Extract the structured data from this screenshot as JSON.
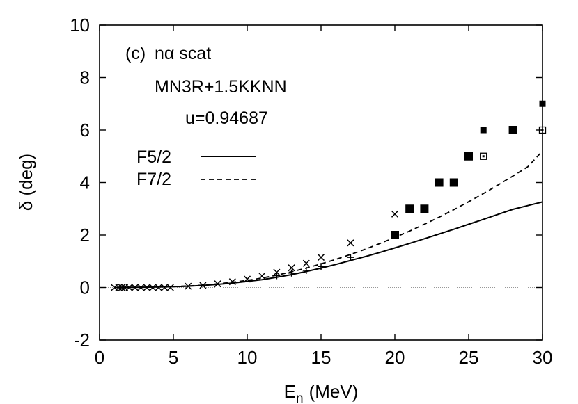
{
  "chart_data": {
    "type": "line",
    "panel_label": "(c)",
    "title": "nα scat",
    "annotations": [
      "MN3R+1.5KKNN",
      "u=0.94687"
    ],
    "xlabel_main": "E",
    "xlabel_sub": "n",
    "xlabel_unit": "(MeV)",
    "ylabel": "δ (deg)",
    "xlim": [
      0,
      30
    ],
    "ylim": [
      -2,
      10
    ],
    "xticks": [
      0,
      5,
      10,
      15,
      20,
      25,
      30
    ],
    "yticks": [
      -2,
      0,
      2,
      4,
      6,
      8,
      10
    ],
    "xtick_labels": [
      "0",
      "5",
      "10",
      "15",
      "20",
      "25",
      "30"
    ],
    "ytick_labels": [
      "-2",
      "0",
      "2",
      "4",
      "6",
      "8",
      "10"
    ],
    "zero_line": true,
    "legend_position": "left-middle",
    "series": [
      {
        "name": "F5/2",
        "style": "solid",
        "x": [
          1,
          2,
          3,
          4,
          5,
          6,
          7,
          8,
          9,
          10,
          11,
          12,
          13,
          14,
          15,
          16,
          17,
          18,
          19,
          20,
          21,
          22,
          23,
          24,
          25,
          26,
          27,
          28,
          29,
          30
        ],
        "y": [
          0.0,
          0.005,
          0.01,
          0.02,
          0.03,
          0.05,
          0.08,
          0.12,
          0.17,
          0.23,
          0.3,
          0.39,
          0.49,
          0.61,
          0.74,
          0.88,
          1.03,
          1.18,
          1.34,
          1.51,
          1.68,
          1.86,
          2.04,
          2.22,
          2.41,
          2.6,
          2.79,
          2.98,
          3.12,
          3.26
        ]
      },
      {
        "name": "F7/2",
        "style": "dashed",
        "x": [
          1,
          2,
          3,
          4,
          5,
          6,
          7,
          8,
          9,
          10,
          11,
          12,
          13,
          14,
          15,
          16,
          17,
          18,
          19,
          20,
          21,
          22,
          23,
          24,
          25,
          26,
          27,
          28,
          29,
          30
        ],
        "y": [
          0.0,
          0.005,
          0.01,
          0.02,
          0.035,
          0.06,
          0.09,
          0.14,
          0.2,
          0.27,
          0.36,
          0.47,
          0.6,
          0.74,
          0.9,
          1.07,
          1.26,
          1.46,
          1.68,
          1.91,
          2.15,
          2.41,
          2.68,
          2.97,
          3.27,
          3.58,
          3.91,
          4.25,
          4.6,
          5.2
        ]
      }
    ],
    "markers": {
      "cross_x": {
        "x": [
          1.0,
          1.3,
          1.5,
          1.7,
          2.0,
          2.4,
          2.8,
          3.2,
          3.6,
          4.0,
          4.4,
          4.8,
          6,
          7,
          8,
          9,
          10,
          11,
          12,
          13,
          14,
          15,
          17,
          20
        ],
        "y": [
          0,
          0,
          0,
          0,
          0,
          0,
          0,
          0,
          0,
          0,
          0,
          0,
          0.05,
          0.08,
          0.14,
          0.22,
          0.32,
          0.44,
          0.58,
          0.75,
          0.92,
          1.15,
          1.7,
          2.8
        ]
      },
      "cross_plus": {
        "x": [
          12,
          13,
          14,
          15,
          17
        ],
        "y": [
          0.45,
          0.55,
          0.65,
          0.8,
          1.15
        ]
      },
      "filled_square_large": {
        "x": [
          20,
          21,
          22,
          23,
          24,
          25,
          28
        ],
        "y": [
          2,
          3,
          3,
          4,
          4,
          5,
          6
        ]
      },
      "filled_square_small": {
        "x": [
          26,
          30
        ],
        "y": [
          6,
          7
        ]
      },
      "open_square": {
        "x": [
          26,
          30
        ],
        "y": [
          5,
          6
        ]
      }
    }
  }
}
